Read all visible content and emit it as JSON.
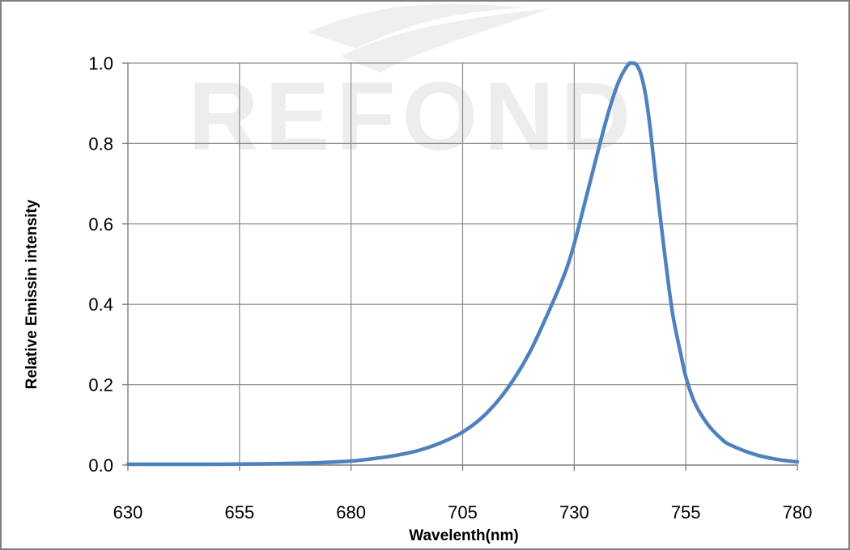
{
  "chart_data": {
    "type": "line",
    "xlabel": "Wavelenth(nm)",
    "ylabel": "Relative Emissin intensity",
    "xlim": [
      630,
      780
    ],
    "ylim": [
      0,
      1.0
    ],
    "x_ticks": [
      "630",
      "655",
      "680",
      "705",
      "730",
      "755",
      "780"
    ],
    "y_ticks": [
      "0.0",
      "0.2",
      "0.4",
      "0.6",
      "0.8",
      "1.0"
    ],
    "grid": true,
    "watermark": "REFOND",
    "series": [
      {
        "color": "#4f81bd",
        "x": [
          630,
          640,
          650,
          660,
          670,
          675,
          680,
          685,
          690,
          695,
          700,
          705,
          710,
          715,
          720,
          725,
          728,
          730,
          733,
          736,
          738,
          740,
          742,
          743,
          744,
          745,
          746,
          747,
          748,
          750,
          752,
          754,
          755,
          757,
          760,
          763,
          765,
          770,
          775,
          780
        ],
        "y": [
          0.002,
          0.002,
          0.002,
          0.003,
          0.005,
          0.007,
          0.01,
          0.016,
          0.024,
          0.036,
          0.055,
          0.082,
          0.125,
          0.19,
          0.28,
          0.4,
          0.48,
          0.55,
          0.68,
          0.81,
          0.89,
          0.955,
          0.995,
          1.0,
          0.995,
          0.97,
          0.92,
          0.84,
          0.74,
          0.55,
          0.38,
          0.27,
          0.22,
          0.155,
          0.1,
          0.065,
          0.05,
          0.028,
          0.015,
          0.008
        ]
      }
    ]
  }
}
